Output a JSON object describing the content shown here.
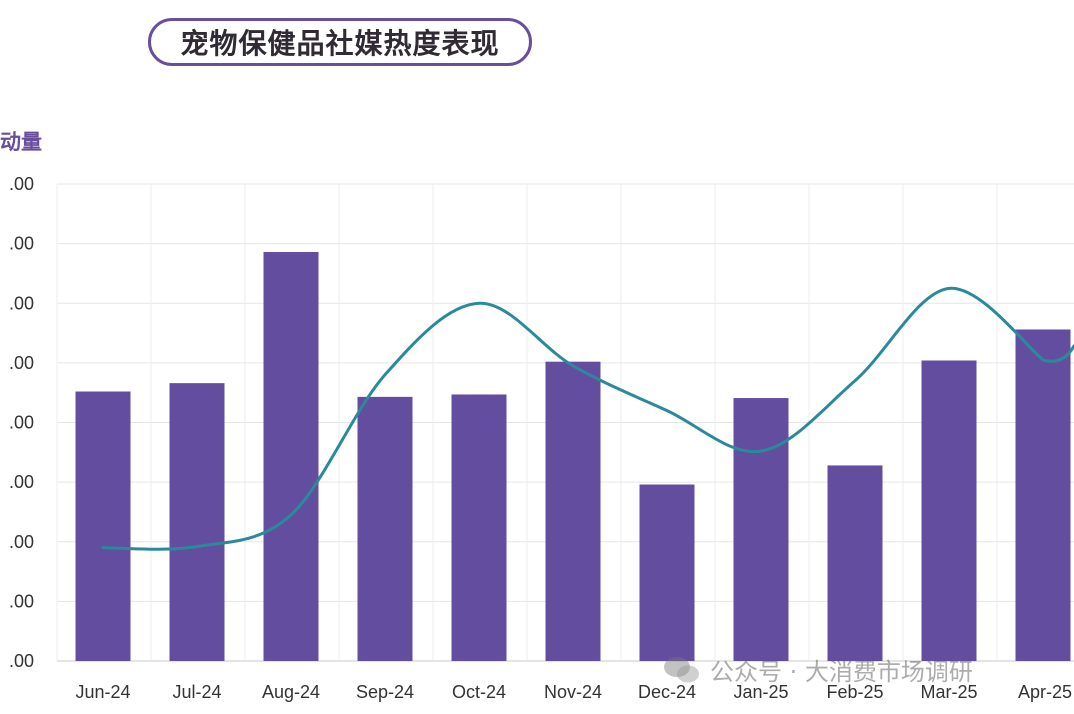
{
  "header": {
    "title": "宠物保健品社媒热度表现"
  },
  "watermark": {
    "text": "公众号 · 大消费市场调研"
  },
  "colors": {
    "bar": "#634d9f",
    "line": "#2a8a9c",
    "title_border": "#6a4e9e",
    "y_title": "#6a4e9e"
  },
  "chart_data": {
    "type": "bar",
    "ylabel": "动量",
    "categories": [
      "Jun-24",
      "Jul-24",
      "Aug-24",
      "Sep-24",
      "Oct-24",
      "Nov-24",
      "Dec-24",
      "Jan-25",
      "Feb-25",
      "Mar-25",
      "Apr-25"
    ],
    "ylim": [
      0,
      8
    ],
    "y_tick_labels": [
      ".00",
      ".00",
      ".00",
      ".00",
      ".00",
      ".00",
      ".00",
      ".00",
      ".00"
    ],
    "series": [
      {
        "type": "bar",
        "values": [
          4.52,
          4.66,
          6.86,
          4.43,
          4.47,
          5.02,
          2.96,
          4.41,
          3.28,
          5.04,
          5.56
        ]
      },
      {
        "type": "line",
        "smooth": true,
        "values": [
          1.9,
          1.92,
          2.45,
          4.8,
          6.0,
          4.95,
          4.2,
          3.52,
          4.7,
          6.25,
          5.05
        ]
      }
    ],
    "grid": true
  }
}
